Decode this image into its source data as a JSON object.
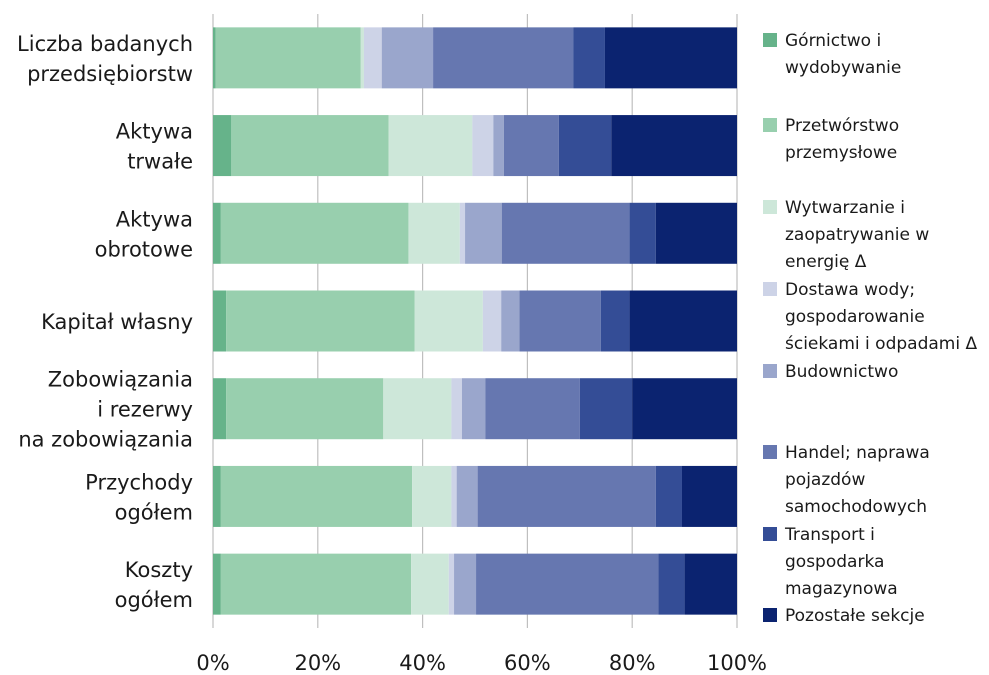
{
  "chart_data": {
    "type": "bar",
    "orientation": "horizontal",
    "stacked": "percent",
    "categories": [
      [
        "Liczba badanych",
        "przedsiębiorstw"
      ],
      [
        "Aktywa",
        "trwałe"
      ],
      [
        "Aktywa",
        "obrotowe"
      ],
      [
        "Kapitał własny"
      ],
      [
        "Zobowiązania",
        "i rezerwy",
        "na zobowiązania"
      ],
      [
        "Przychody",
        "ogółem"
      ],
      [
        "Koszty",
        "ogółem"
      ]
    ],
    "series": [
      {
        "name": "Górnictwo i wydobywanie",
        "legend": [
          "Górnictwo i",
          "wydobywanie"
        ],
        "color": "#66b38a",
        "values": [
          0.5,
          3.5,
          1.5,
          2.5,
          2.5,
          1.5,
          1.5
        ]
      },
      {
        "name": "Przetwórstwo przemysłowe",
        "legend": [
          "Przetwórstwo",
          "przemysłowe"
        ],
        "color": "#98cfae",
        "values": [
          27.7,
          30,
          35.8,
          36,
          30,
          36.5,
          36.3
        ]
      },
      {
        "name": "Wytwarzanie i zaopatrywanie w energię Δ",
        "legend": [
          "Wytwarzanie i",
          "zaopatrywanie w",
          "energię Δ"
        ],
        "color": "#cde7d9",
        "values": [
          0.6,
          16,
          9.8,
          13,
          13,
          7.5,
          7.2
        ]
      },
      {
        "name": "Dostawa wody; gospodarowanie ściekami i odpadami Δ",
        "legend": [
          "Dostawa wody;",
          "gospodarowanie",
          "ściekami i odpadami Δ"
        ],
        "color": "#cdd3e7",
        "values": [
          3.4,
          4,
          1,
          3.5,
          2,
          1,
          1
        ]
      },
      {
        "name": "Budownictwo",
        "legend": [
          "Budownictwo"
        ],
        "color": "#9aa6cc",
        "values": [
          9.8,
          2,
          7,
          3.5,
          4.5,
          4,
          4.2
        ]
      },
      {
        "name": "Handel; naprawa pojazdów samochodowych",
        "legend": [
          "Handel; naprawa",
          "pojazdów",
          "samochodowych"
        ],
        "color": "#6677b0",
        "values": [
          26.8,
          10.5,
          24.4,
          15.5,
          18,
          34,
          34.8
        ]
      },
      {
        "name": "Transport i gospodarka magazynowa",
        "legend": [
          "Transport i",
          "gospodarka",
          "magazynowa"
        ],
        "color": "#344d96",
        "values": [
          6,
          10,
          5,
          5.5,
          10,
          5,
          5
        ]
      },
      {
        "name": "Pozostałe sekcje",
        "legend": [
          "Pozostałe sekcje"
        ],
        "color": "#0b2370",
        "values": [
          25.2,
          24,
          15.5,
          20.5,
          20,
          10.5,
          10
        ]
      }
    ],
    "xaxis": {
      "ticks": [
        0,
        20,
        40,
        60,
        80,
        100
      ],
      "tick_labels": [
        "0%",
        "20%",
        "40%",
        "60%",
        "80%",
        "100%"
      ],
      "range": [
        0,
        100
      ]
    },
    "grid": {
      "vertical": true,
      "horizontal": false,
      "color": "#bfbfbf"
    },
    "legend": {
      "position": "right"
    },
    "title": "",
    "xlabel": "",
    "ylabel": ""
  }
}
